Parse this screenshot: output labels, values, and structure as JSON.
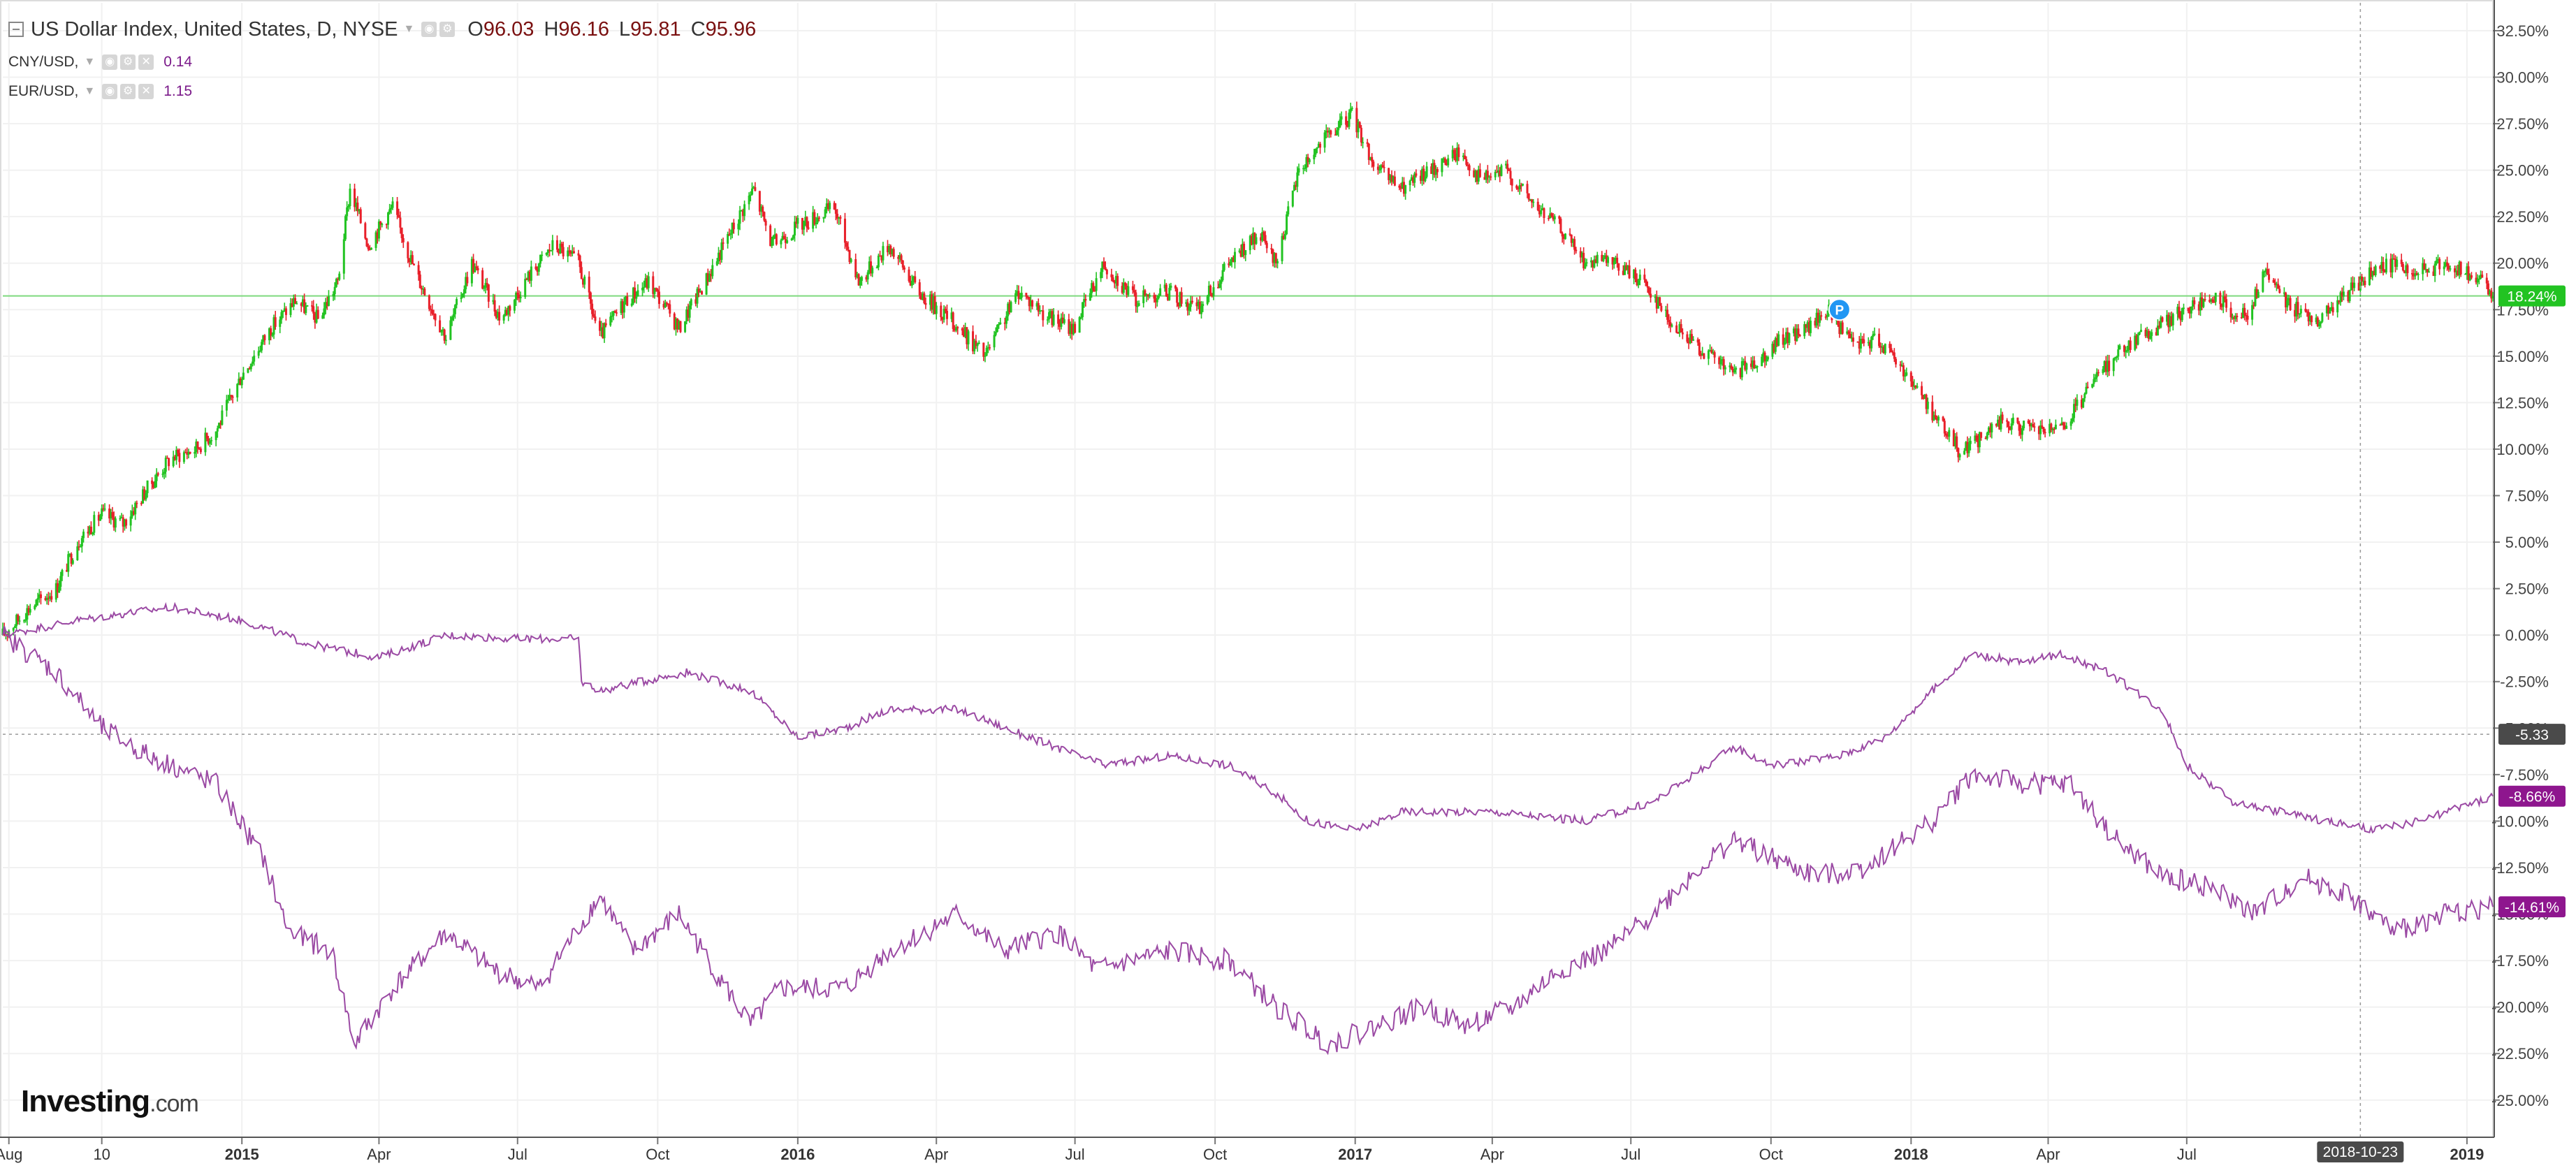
{
  "legend": {
    "main_title": "US Dollar Index, United States, D, NYSE",
    "open_label": "O",
    "open": "96.03",
    "high_label": "H",
    "high": "96.16",
    "low_label": "L",
    "low": "95.81",
    "close_label": "C",
    "close": "95.96",
    "series2_label": "CNY/USD,",
    "series2_value": "0.14",
    "series3_label": "EUR/USD,",
    "series3_value": "1.15"
  },
  "logo": {
    "brand": "Investing",
    "domain": ".com"
  },
  "colors": {
    "up_candle": "#22c322",
    "down_candle": "#e8202a",
    "compare_line": "#9b4aa4",
    "last_value_line": "#7ed97e",
    "last_badge_green": "#22c322",
    "cny_badge": "#8e168e",
    "eur_badge": "#8e168e",
    "crosshair_badge": "#4a4a4a",
    "event_marker": "#2196f3"
  },
  "icons": [
    "collapse-box-icon",
    "settings-gear-icon",
    "eye-icon",
    "close-icon",
    "event-p-icon"
  ],
  "chart_data": {
    "type": "line",
    "title": "US Dollar Index, United States, D, NYSE",
    "y_unit": "% change",
    "ylim": [
      -27,
      34
    ],
    "xlim": [
      "2014-07-28",
      "2019-01-18"
    ],
    "y_ticks": [
      "32.50%",
      "30.00%",
      "27.50%",
      "25.00%",
      "22.50%",
      "20.00%",
      "17.50%",
      "15.00%",
      "12.50%",
      "10.00%",
      "7.50%",
      "5.00%",
      "2.50%",
      "0.00%",
      "-2.50%",
      "-5.00%",
      "-7.50%",
      "-10.00%",
      "-12.50%",
      "-15.00%",
      "-17.50%",
      "-20.00%",
      "-22.50%",
      "-25.00%"
    ],
    "y_tick_values": [
      32.5,
      30,
      27.5,
      25,
      22.5,
      20,
      17.5,
      15,
      12.5,
      10,
      7.5,
      5,
      2.5,
      0,
      -2.5,
      -5,
      -7.5,
      -10,
      -12.5,
      -15,
      -17.5,
      -20,
      -22.5,
      -25
    ],
    "x_ticks": [
      {
        "label": "Aug",
        "date": "2014-08-01",
        "bold": false
      },
      {
        "label": "10",
        "date": "2014-10-01",
        "bold": false
      },
      {
        "label": "2015",
        "date": "2015-01-01",
        "bold": true
      },
      {
        "label": "Apr",
        "date": "2015-04-01",
        "bold": false
      },
      {
        "label": "Jul",
        "date": "2015-07-01",
        "bold": false
      },
      {
        "label": "Oct",
        "date": "2015-10-01",
        "bold": false
      },
      {
        "label": "2016",
        "date": "2016-01-01",
        "bold": true
      },
      {
        "label": "Apr",
        "date": "2016-04-01",
        "bold": false
      },
      {
        "label": "Jul",
        "date": "2016-07-01",
        "bold": false
      },
      {
        "label": "Oct",
        "date": "2016-10-01",
        "bold": false
      },
      {
        "label": "2017",
        "date": "2017-01-01",
        "bold": true
      },
      {
        "label": "Apr",
        "date": "2017-04-01",
        "bold": false
      },
      {
        "label": "Jul",
        "date": "2017-07-01",
        "bold": false
      },
      {
        "label": "Oct",
        "date": "2017-10-01",
        "bold": false
      },
      {
        "label": "2018",
        "date": "2018-01-01",
        "bold": true
      },
      {
        "label": "Apr",
        "date": "2018-04-01",
        "bold": false
      },
      {
        "label": "Jul",
        "date": "2018-07-01",
        "bold": false
      },
      {
        "label": "2019",
        "date": "2019-01-01",
        "bold": true
      }
    ],
    "crosshair": {
      "x_label": "2018-10-23",
      "date": "2018-10-23",
      "y_label": "-5.33",
      "y": -5.33
    },
    "last_value_line": 18.24,
    "event_marker": {
      "label": "P",
      "date": "2017-11-15",
      "y": 17.5
    },
    "series": [
      {
        "name": "US Dollar Index",
        "style": "candlestick",
        "last_label": "18.24%",
        "points": [
          [
            "2014-07-28",
            0
          ],
          [
            "2014-08-15",
            1.5
          ],
          [
            "2014-09-01",
            2.5
          ],
          [
            "2014-09-15",
            5
          ],
          [
            "2014-10-01",
            6.5
          ],
          [
            "2014-10-15",
            6
          ],
          [
            "2014-11-01",
            8
          ],
          [
            "2014-11-15",
            9.5
          ],
          [
            "2014-12-01",
            10
          ],
          [
            "2014-12-15",
            11
          ],
          [
            "2015-01-01",
            14
          ],
          [
            "2015-01-20",
            16.5
          ],
          [
            "2015-02-05",
            18
          ],
          [
            "2015-02-20",
            17
          ],
          [
            "2015-03-05",
            19
          ],
          [
            "2015-03-13",
            24
          ],
          [
            "2015-03-25",
            21
          ],
          [
            "2015-04-10",
            23
          ],
          [
            "2015-04-25",
            19.5
          ],
          [
            "2015-05-15",
            16
          ],
          [
            "2015-06-01",
            20
          ],
          [
            "2015-06-20",
            17
          ],
          [
            "2015-07-10",
            19.5
          ],
          [
            "2015-07-25",
            21
          ],
          [
            "2015-08-10",
            20
          ],
          [
            "2015-08-24",
            16
          ],
          [
            "2015-09-10",
            18
          ],
          [
            "2015-09-25",
            19
          ],
          [
            "2015-10-15",
            16.5
          ],
          [
            "2015-11-01",
            19
          ],
          [
            "2015-11-20",
            22
          ],
          [
            "2015-12-03",
            24
          ],
          [
            "2015-12-15",
            21
          ],
          [
            "2016-01-01",
            22
          ],
          [
            "2016-01-25",
            23
          ],
          [
            "2016-02-10",
            19
          ],
          [
            "2016-03-01",
            21
          ],
          [
            "2016-03-20",
            18.5
          ],
          [
            "2016-04-10",
            17
          ],
          [
            "2016-05-03",
            15
          ],
          [
            "2016-05-25",
            18.5
          ],
          [
            "2016-06-15",
            17
          ],
          [
            "2016-06-30",
            16.5
          ],
          [
            "2016-07-20",
            20
          ],
          [
            "2016-08-10",
            18
          ],
          [
            "2016-08-30",
            18.5
          ],
          [
            "2016-09-20",
            17.5
          ],
          [
            "2016-10-10",
            20
          ],
          [
            "2016-10-30",
            21.5
          ],
          [
            "2016-11-10",
            20
          ],
          [
            "2016-11-25",
            25
          ],
          [
            "2016-12-10",
            26.5
          ],
          [
            "2016-12-30",
            28
          ],
          [
            "2017-01-15",
            25
          ],
          [
            "2017-02-01",
            24
          ],
          [
            "2017-02-20",
            25
          ],
          [
            "2017-03-10",
            26
          ],
          [
            "2017-03-25",
            24.5
          ],
          [
            "2017-04-10",
            25
          ],
          [
            "2017-04-30",
            23
          ],
          [
            "2017-05-15",
            22
          ],
          [
            "2017-06-01",
            20
          ],
          [
            "2017-06-20",
            20
          ],
          [
            "2017-07-10",
            19
          ],
          [
            "2017-07-30",
            16.5
          ],
          [
            "2017-08-15",
            15.5
          ],
          [
            "2017-09-07",
            14
          ],
          [
            "2017-09-25",
            15
          ],
          [
            "2017-10-10",
            16
          ],
          [
            "2017-10-25",
            16.5
          ],
          [
            "2017-11-07",
            17.5
          ],
          [
            "2017-11-25",
            15.5
          ],
          [
            "2017-12-10",
            16
          ],
          [
            "2017-12-30",
            14
          ],
          [
            "2018-01-15",
            12
          ],
          [
            "2018-02-01",
            10
          ],
          [
            "2018-02-15",
            10.5
          ],
          [
            "2018-03-01",
            11.5
          ],
          [
            "2018-03-20",
            11
          ],
          [
            "2018-04-10",
            11
          ],
          [
            "2018-04-30",
            13.5
          ],
          [
            "2018-05-20",
            15.5
          ],
          [
            "2018-06-10",
            16.5
          ],
          [
            "2018-06-30",
            17.5
          ],
          [
            "2018-07-20",
            18
          ],
          [
            "2018-08-10",
            17
          ],
          [
            "2018-08-20",
            19.5
          ],
          [
            "2018-09-10",
            17.5
          ],
          [
            "2018-09-25",
            17
          ],
          [
            "2018-10-10",
            18
          ],
          [
            "2018-10-30",
            19.5
          ],
          [
            "2018-11-15",
            20
          ],
          [
            "2018-12-01",
            19.5
          ],
          [
            "2018-12-20",
            20
          ],
          [
            "2019-01-10",
            19
          ],
          [
            "2019-01-18",
            18.24
          ]
        ]
      },
      {
        "name": "CNY/USD",
        "style": "line",
        "last_label": "-8.66%",
        "points": [
          [
            "2014-07-28",
            0
          ],
          [
            "2014-09-15",
            0.8
          ],
          [
            "2014-11-15",
            1.5
          ],
          [
            "2015-01-01",
            0.8
          ],
          [
            "2015-02-15",
            -0.5
          ],
          [
            "2015-04-01",
            -1.2
          ],
          [
            "2015-05-15",
            0
          ],
          [
            "2015-07-01",
            -0.2
          ],
          [
            "2015-08-10",
            -0.2
          ],
          [
            "2015-08-12",
            -2.5
          ],
          [
            "2015-08-25",
            -3
          ],
          [
            "2015-09-20",
            -2.5
          ],
          [
            "2015-10-20",
            -2
          ],
          [
            "2015-12-01",
            -3
          ],
          [
            "2016-01-01",
            -5.5
          ],
          [
            "2016-02-01",
            -5
          ],
          [
            "2016-03-01",
            -4
          ],
          [
            "2016-04-15",
            -4
          ],
          [
            "2016-06-01",
            -5.5
          ],
          [
            "2016-07-20",
            -7
          ],
          [
            "2016-09-01",
            -6.5
          ],
          [
            "2016-10-10",
            -7
          ],
          [
            "2016-11-10",
            -8.5
          ],
          [
            "2016-12-01",
            -10
          ],
          [
            "2017-01-01",
            -10.5
          ],
          [
            "2017-02-01",
            -9.5
          ],
          [
            "2017-04-01",
            -9.5
          ],
          [
            "2017-06-01",
            -10
          ],
          [
            "2017-07-15",
            -9
          ],
          [
            "2017-09-07",
            -6
          ],
          [
            "2017-10-01",
            -7
          ],
          [
            "2017-11-15",
            -6.5
          ],
          [
            "2017-12-15",
            -5.5
          ],
          [
            "2018-01-15",
            -3
          ],
          [
            "2018-02-10",
            -1
          ],
          [
            "2018-03-15",
            -1.5
          ],
          [
            "2018-04-10",
            -1
          ],
          [
            "2018-05-10",
            -2
          ],
          [
            "2018-06-15",
            -4
          ],
          [
            "2018-07-01",
            -7
          ],
          [
            "2018-08-01",
            -9
          ],
          [
            "2018-09-01",
            -9.5
          ],
          [
            "2018-10-01",
            -10
          ],
          [
            "2018-11-01",
            -10.5
          ],
          [
            "2018-12-01",
            -10
          ],
          [
            "2019-01-18",
            -8.66
          ]
        ]
      },
      {
        "name": "EUR/USD",
        "style": "line",
        "last_label": "-14.61%",
        "points": [
          [
            "2014-07-28",
            0
          ],
          [
            "2014-09-01",
            -2
          ],
          [
            "2014-10-01",
            -5
          ],
          [
            "2014-11-01",
            -6.5
          ],
          [
            "2014-12-15",
            -8
          ],
          [
            "2015-01-15",
            -12
          ],
          [
            "2015-02-01",
            -16
          ],
          [
            "2015-03-01",
            -17
          ],
          [
            "2015-03-16",
            -22
          ],
          [
            "2015-04-10",
            -19
          ],
          [
            "2015-05-15",
            -16
          ],
          [
            "2015-06-15",
            -18
          ],
          [
            "2015-07-15",
            -19
          ],
          [
            "2015-08-24",
            -14
          ],
          [
            "2015-09-15",
            -17
          ],
          [
            "2015-10-15",
            -15
          ],
          [
            "2015-11-15",
            -19
          ],
          [
            "2015-12-01",
            -21
          ],
          [
            "2015-12-20",
            -19
          ],
          [
            "2016-02-01",
            -19
          ],
          [
            "2016-03-01",
            -17
          ],
          [
            "2016-04-15",
            -15
          ],
          [
            "2016-05-15",
            -17
          ],
          [
            "2016-06-20",
            -16
          ],
          [
            "2016-07-15",
            -18
          ],
          [
            "2016-09-01",
            -17
          ],
          [
            "2016-10-10",
            -17.5
          ],
          [
            "2016-11-10",
            -20
          ],
          [
            "2016-12-15",
            -22
          ],
          [
            "2017-01-15",
            -21
          ],
          [
            "2017-02-15",
            -20
          ],
          [
            "2017-03-15",
            -21
          ],
          [
            "2017-04-15",
            -20
          ],
          [
            "2017-05-15",
            -18
          ],
          [
            "2017-06-15",
            -17
          ],
          [
            "2017-07-15",
            -15
          ],
          [
            "2017-08-15",
            -12.5
          ],
          [
            "2017-09-07",
            -11
          ],
          [
            "2017-10-01",
            -12
          ],
          [
            "2017-11-01",
            -13
          ],
          [
            "2017-12-01",
            -12.5
          ],
          [
            "2018-01-15",
            -10
          ],
          [
            "2018-02-10",
            -7.5
          ],
          [
            "2018-03-15",
            -8
          ],
          [
            "2018-04-15",
            -8
          ],
          [
            "2018-05-15",
            -11
          ],
          [
            "2018-06-15",
            -13
          ],
          [
            "2018-07-15",
            -13.5
          ],
          [
            "2018-08-15",
            -15
          ],
          [
            "2018-09-15",
            -13
          ],
          [
            "2018-10-15",
            -14
          ],
          [
            "2018-11-15",
            -16
          ],
          [
            "2018-12-15",
            -15
          ],
          [
            "2019-01-18",
            -14.61
          ]
        ]
      }
    ]
  }
}
